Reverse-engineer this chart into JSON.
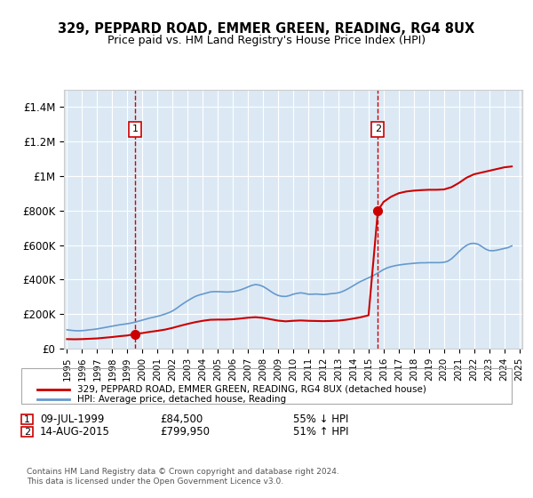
{
  "title": "329, PEPPARD ROAD, EMMER GREEN, READING, RG4 8UX",
  "subtitle": "Price paid vs. HM Land Registry's House Price Index (HPI)",
  "ylabel": "",
  "xlabel": "",
  "ylim": [
    0,
    1500000
  ],
  "yticks": [
    0,
    200000,
    400000,
    600000,
    800000,
    1000000,
    1200000,
    1400000
  ],
  "ytick_labels": [
    "£0",
    "£200K",
    "£400K",
    "£600K",
    "£800K",
    "£1M",
    "£1.2M",
    "£1.4M"
  ],
  "sale1_date": "09-JUL-1999",
  "sale1_price": 84500,
  "sale1_year": 1999.52,
  "sale1_label": "1",
  "sale1_pct": "55% ↓ HPI",
  "sale2_date": "14-AUG-2015",
  "sale2_price": 799950,
  "sale2_year": 2015.62,
  "sale2_label": "2",
  "sale2_pct": "51% ↑ HPI",
  "red_color": "#cc0000",
  "blue_color": "#6699cc",
  "bg_color": "#dce9f5",
  "grid_color": "#ffffff",
  "dashed_color": "#cc0000",
  "legend_label_red": "329, PEPPARD ROAD, EMMER GREEN, READING, RG4 8UX (detached house)",
  "legend_label_blue": "HPI: Average price, detached house, Reading",
  "footer": "Contains HM Land Registry data © Crown copyright and database right 2024.\nThis data is licensed under the Open Government Licence v3.0.",
  "hpi_years": [
    1995.0,
    1995.25,
    1995.5,
    1995.75,
    1996.0,
    1996.25,
    1996.5,
    1996.75,
    1997.0,
    1997.25,
    1997.5,
    1997.75,
    1998.0,
    1998.25,
    1998.5,
    1998.75,
    1999.0,
    1999.25,
    1999.5,
    1999.75,
    2000.0,
    2000.25,
    2000.5,
    2000.75,
    2001.0,
    2001.25,
    2001.5,
    2001.75,
    2002.0,
    2002.25,
    2002.5,
    2002.75,
    2003.0,
    2003.25,
    2003.5,
    2003.75,
    2004.0,
    2004.25,
    2004.5,
    2004.75,
    2005.0,
    2005.25,
    2005.5,
    2005.75,
    2006.0,
    2006.25,
    2006.5,
    2006.75,
    2007.0,
    2007.25,
    2007.5,
    2007.75,
    2008.0,
    2008.25,
    2008.5,
    2008.75,
    2009.0,
    2009.25,
    2009.5,
    2009.75,
    2010.0,
    2010.25,
    2010.5,
    2010.75,
    2011.0,
    2011.25,
    2011.5,
    2011.75,
    2012.0,
    2012.25,
    2012.5,
    2012.75,
    2013.0,
    2013.25,
    2013.5,
    2013.75,
    2014.0,
    2014.25,
    2014.5,
    2014.75,
    2015.0,
    2015.25,
    2015.5,
    2015.75,
    2016.0,
    2016.25,
    2016.5,
    2016.75,
    2017.0,
    2017.25,
    2017.5,
    2017.75,
    2018.0,
    2018.25,
    2018.5,
    2018.75,
    2019.0,
    2019.25,
    2019.5,
    2019.75,
    2020.0,
    2020.25,
    2020.5,
    2020.75,
    2021.0,
    2021.25,
    2021.5,
    2021.75,
    2022.0,
    2022.25,
    2022.5,
    2022.75,
    2023.0,
    2023.25,
    2023.5,
    2023.75,
    2024.0,
    2024.25,
    2024.5
  ],
  "hpi_values": [
    109000,
    106000,
    104000,
    103000,
    104000,
    106000,
    109000,
    111000,
    114000,
    118000,
    122000,
    126000,
    130000,
    134000,
    138000,
    141000,
    144000,
    148000,
    153000,
    159000,
    165000,
    171000,
    177000,
    182000,
    187000,
    193000,
    200000,
    208000,
    218000,
    232000,
    248000,
    263000,
    277000,
    290000,
    302000,
    310000,
    316000,
    322000,
    328000,
    330000,
    330000,
    329000,
    328000,
    328000,
    330000,
    334000,
    340000,
    348000,
    357000,
    366000,
    371000,
    368000,
    360000,
    347000,
    332000,
    318000,
    308000,
    303000,
    302000,
    307000,
    315000,
    320000,
    323000,
    320000,
    315000,
    315000,
    316000,
    315000,
    313000,
    315000,
    318000,
    320000,
    323000,
    330000,
    340000,
    352000,
    365000,
    378000,
    390000,
    400000,
    410000,
    420000,
    432000,
    445000,
    458000,
    468000,
    475000,
    480000,
    484000,
    487000,
    490000,
    492000,
    494000,
    496000,
    497000,
    497000,
    498000,
    498000,
    498000,
    498000,
    500000,
    506000,
    520000,
    540000,
    562000,
    582000,
    598000,
    608000,
    610000,
    605000,
    592000,
    577000,
    568000,
    567000,
    570000,
    575000,
    580000,
    585000,
    595000
  ],
  "red_years": [
    1995.0,
    1995.5,
    1996.0,
    1996.5,
    1997.0,
    1997.5,
    1998.0,
    1998.5,
    1999.0,
    1999.52,
    2000.0,
    2000.5,
    2001.0,
    2001.5,
    2002.0,
    2002.5,
    2003.0,
    2003.5,
    2004.0,
    2004.5,
    2005.0,
    2005.5,
    2006.0,
    2006.5,
    2007.0,
    2007.5,
    2008.0,
    2008.5,
    2009.0,
    2009.5,
    2010.0,
    2010.5,
    2011.0,
    2011.5,
    2012.0,
    2012.5,
    2013.0,
    2013.5,
    2014.0,
    2014.5,
    2015.0,
    2015.62,
    2016.0,
    2016.5,
    2017.0,
    2017.5,
    2018.0,
    2018.5,
    2019.0,
    2019.5,
    2020.0,
    2020.5,
    2021.0,
    2021.5,
    2022.0,
    2022.5,
    2023.0,
    2023.5,
    2024.0,
    2024.5
  ],
  "red_values": [
    55000,
    54000,
    55000,
    57000,
    59000,
    63000,
    67000,
    72000,
    76000,
    84500,
    90000,
    97000,
    103000,
    110000,
    120000,
    132000,
    143000,
    153000,
    161000,
    167000,
    168000,
    168000,
    170000,
    174000,
    179000,
    182000,
    178000,
    170000,
    162000,
    158000,
    161000,
    163000,
    161000,
    160000,
    159000,
    160000,
    162000,
    167000,
    174000,
    182000,
    193000,
    799950,
    850000,
    880000,
    900000,
    910000,
    915000,
    918000,
    920000,
    920000,
    922000,
    935000,
    960000,
    990000,
    1010000,
    1020000,
    1030000,
    1040000,
    1050000,
    1055000
  ]
}
